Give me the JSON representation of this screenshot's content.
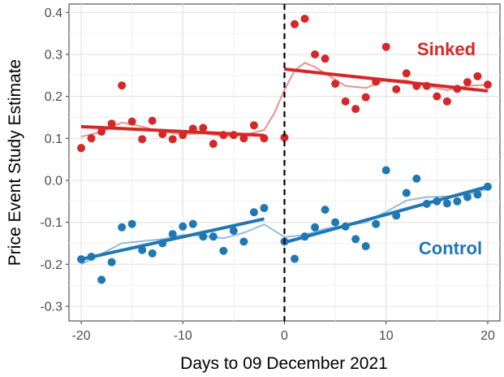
{
  "chart_data": {
    "type": "scatter",
    "title": "",
    "xlabel": "Days to 09 December 2021",
    "ylabel": "Price Event Study Estimate",
    "xlim": [
      -21.2,
      21.2
    ],
    "ylim": [
      -0.335,
      0.42
    ],
    "x_ticks": [
      -20,
      -10,
      0,
      10,
      20
    ],
    "x_tick_labels": [
      "-20",
      "-10",
      "0",
      "10",
      "20"
    ],
    "y_ticks": [
      -0.3,
      -0.2,
      -0.1,
      0.0,
      0.1,
      0.2,
      0.3,
      0.4
    ],
    "y_tick_labels": [
      "-0.3",
      "-0.2",
      "-0.1",
      "0.0",
      "0.1",
      "0.2",
      "0.3",
      "0.4"
    ],
    "grid": true,
    "event_line_x": 0,
    "series": [
      {
        "name": "Sinked",
        "color": "#d62728",
        "smooth_color": "#e8928f",
        "points": [
          [
            -20,
            0.077
          ],
          [
            -19,
            0.1
          ],
          [
            -18,
            0.116
          ],
          [
            -17,
            0.135
          ],
          [
            -16,
            0.226
          ],
          [
            -15,
            0.14
          ],
          [
            -14,
            0.098
          ],
          [
            -13,
            0.142
          ],
          [
            -12,
            0.11
          ],
          [
            -11,
            0.098
          ],
          [
            -10,
            0.108
          ],
          [
            -9,
            0.123
          ],
          [
            -8,
            0.125
          ],
          [
            -7,
            0.087
          ],
          [
            -6,
            0.108
          ],
          [
            -5,
            0.108
          ],
          [
            -4,
            0.1
          ],
          [
            -3,
            0.131
          ],
          [
            -2,
            0.1
          ],
          [
            0,
            0.102
          ],
          [
            1,
            0.372
          ],
          [
            2,
            0.385
          ],
          [
            3,
            0.3
          ],
          [
            4,
            0.29
          ],
          [
            5,
            0.23
          ],
          [
            6,
            0.188
          ],
          [
            7,
            0.17
          ],
          [
            8,
            0.198
          ],
          [
            9,
            0.235
          ],
          [
            10,
            0.318
          ],
          [
            11,
            0.217
          ],
          [
            12,
            0.255
          ],
          [
            13,
            0.225
          ],
          [
            14,
            0.225
          ],
          [
            15,
            0.2
          ],
          [
            16,
            0.188
          ],
          [
            17,
            0.218
          ],
          [
            18,
            0.234
          ],
          [
            19,
            0.248
          ],
          [
            20,
            0.228
          ]
        ],
        "fit_pre": [
          [
            -20,
            0.128
          ],
          [
            -2,
            0.107
          ]
        ],
        "fit_post": [
          [
            0,
            0.265
          ],
          [
            20,
            0.213
          ]
        ],
        "smooth": [
          [
            -20,
            0.104
          ],
          [
            -18,
            0.115
          ],
          [
            -16,
            0.138
          ],
          [
            -14,
            0.128
          ],
          [
            -12,
            0.115
          ],
          [
            -10,
            0.11
          ],
          [
            -8,
            0.112
          ],
          [
            -6,
            0.105
          ],
          [
            -4,
            0.108
          ],
          [
            -2,
            0.12
          ],
          [
            -1,
            0.16
          ],
          [
            0,
            0.215
          ],
          [
            1,
            0.262
          ],
          [
            2,
            0.28
          ],
          [
            3,
            0.27
          ],
          [
            4,
            0.255
          ],
          [
            5,
            0.24
          ],
          [
            6,
            0.225
          ],
          [
            8,
            0.22
          ],
          [
            10,
            0.24
          ],
          [
            12,
            0.238
          ],
          [
            14,
            0.225
          ],
          [
            16,
            0.215
          ],
          [
            18,
            0.225
          ],
          [
            20,
            0.228
          ]
        ]
      },
      {
        "name": "Control",
        "color": "#1f77b4",
        "smooth_color": "#8fbde0",
        "points": [
          [
            -20,
            -0.188
          ],
          [
            -19,
            -0.182
          ],
          [
            -18,
            -0.237
          ],
          [
            -17,
            -0.195
          ],
          [
            -16,
            -0.112
          ],
          [
            -15,
            -0.104
          ],
          [
            -14,
            -0.166
          ],
          [
            -13,
            -0.174
          ],
          [
            -12,
            -0.15
          ],
          [
            -11,
            -0.128
          ],
          [
            -10,
            -0.11
          ],
          [
            -9,
            -0.104
          ],
          [
            -8,
            -0.134
          ],
          [
            -7,
            -0.134
          ],
          [
            -6,
            -0.168
          ],
          [
            -5,
            -0.12
          ],
          [
            -4,
            -0.146
          ],
          [
            -3,
            -0.076
          ],
          [
            -2,
            -0.066
          ],
          [
            0,
            -0.146
          ],
          [
            1,
            -0.187
          ],
          [
            2,
            -0.134
          ],
          [
            3,
            -0.112
          ],
          [
            4,
            -0.07
          ],
          [
            5,
            -0.1
          ],
          [
            6,
            -0.11
          ],
          [
            7,
            -0.14
          ],
          [
            8,
            -0.157
          ],
          [
            9,
            -0.104
          ],
          [
            10,
            0.024
          ],
          [
            11,
            -0.084
          ],
          [
            12,
            -0.03
          ],
          [
            13,
            0.004
          ],
          [
            14,
            -0.056
          ],
          [
            15,
            -0.05
          ],
          [
            16,
            -0.055
          ],
          [
            17,
            -0.05
          ],
          [
            18,
            -0.04
          ],
          [
            19,
            -0.034
          ],
          [
            20,
            -0.015
          ]
        ],
        "fit_pre": [
          [
            -20,
            -0.188
          ],
          [
            -2,
            -0.092
          ]
        ],
        "fit_post": [
          [
            0,
            -0.148
          ],
          [
            20,
            -0.015
          ]
        ],
        "smooth": [
          [
            -20,
            -0.2
          ],
          [
            -18,
            -0.175
          ],
          [
            -16,
            -0.15
          ],
          [
            -14,
            -0.145
          ],
          [
            -12,
            -0.14
          ],
          [
            -10,
            -0.13
          ],
          [
            -8,
            -0.132
          ],
          [
            -6,
            -0.138
          ],
          [
            -4,
            -0.125
          ],
          [
            -2,
            -0.105
          ],
          [
            0,
            -0.135
          ],
          [
            2,
            -0.13
          ],
          [
            4,
            -0.115
          ],
          [
            6,
            -0.108
          ],
          [
            8,
            -0.1
          ],
          [
            10,
            -0.075
          ],
          [
            12,
            -0.048
          ],
          [
            14,
            -0.04
          ],
          [
            16,
            -0.038
          ],
          [
            18,
            -0.035
          ],
          [
            20,
            -0.02
          ]
        ]
      }
    ]
  }
}
